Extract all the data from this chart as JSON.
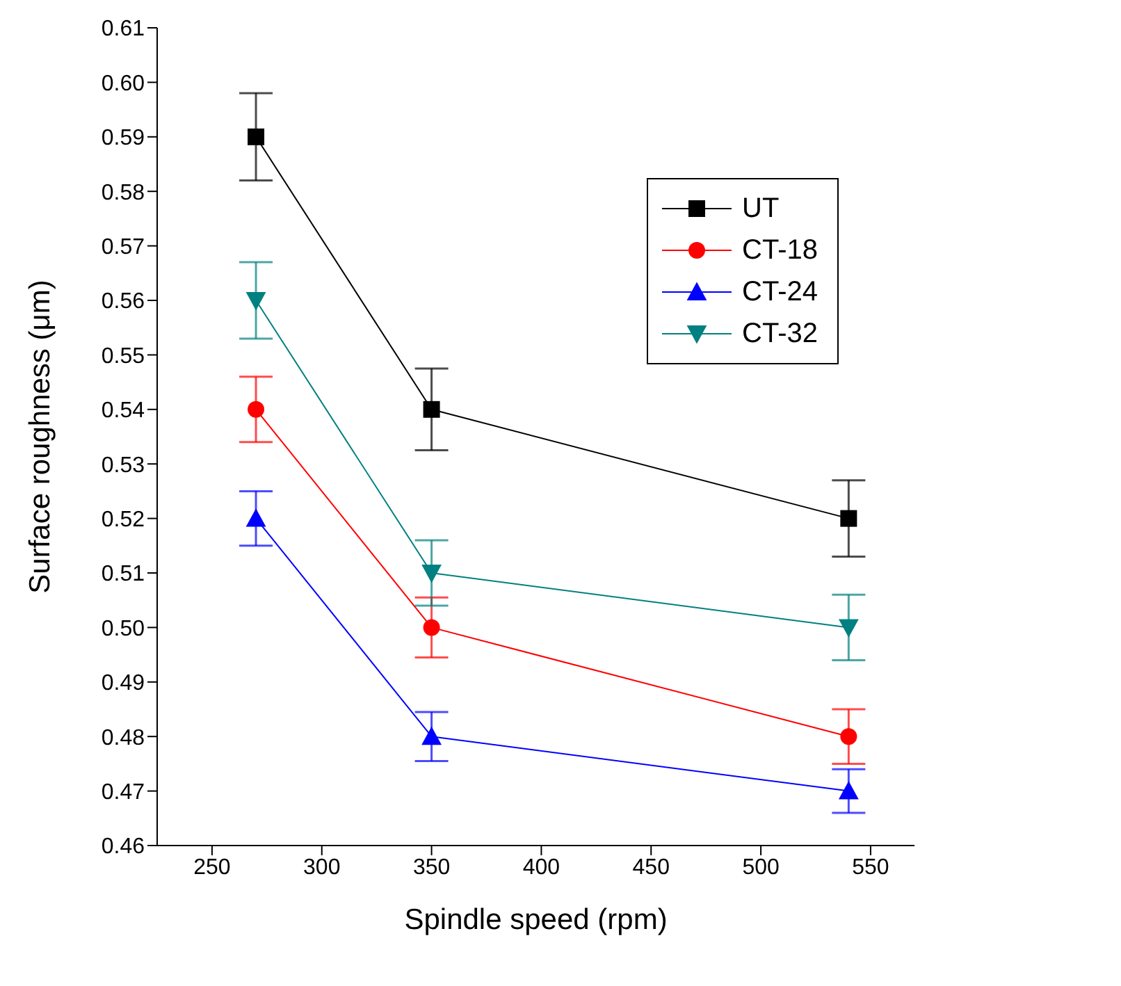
{
  "chart_data": {
    "type": "line",
    "xlabel": "Spindle speed (rpm)",
    "ylabel": "Surface roughness (μm)",
    "x": [
      270,
      350,
      540
    ],
    "xlim": [
      225,
      570
    ],
    "xticks": [
      250,
      300,
      350,
      400,
      450,
      500,
      550
    ],
    "ylim": [
      0.46,
      0.61
    ],
    "yticks": [
      0.46,
      0.47,
      0.48,
      0.49,
      {
        "value": 0.5,
        "label": "0.50"
      },
      0.51,
      0.52,
      0.53,
      0.54,
      0.55,
      0.56,
      0.57,
      0.58,
      0.59,
      {
        "value": 0.6,
        "label": "0.60"
      },
      0.61
    ],
    "grid": false,
    "legend": "top right",
    "series": [
      {
        "name": "UT",
        "color": "#000000",
        "marker": "square",
        "values": [
          0.59,
          0.54,
          0.52
        ],
        "errors": [
          0.008,
          0.0075,
          0.007
        ]
      },
      {
        "name": "CT-18",
        "color": "#ff0000",
        "marker": "circle",
        "values": [
          0.54,
          0.5,
          0.48
        ],
        "errors": [
          0.006,
          0.0055,
          0.005
        ]
      },
      {
        "name": "CT-24",
        "color": "#0000ff",
        "marker": "triangle",
        "values": [
          0.52,
          0.48,
          0.47
        ],
        "errors": [
          0.005,
          0.0045,
          0.004
        ]
      },
      {
        "name": "CT-32",
        "color": "#008080",
        "marker": "triangle-down",
        "values": [
          0.56,
          0.51,
          0.5
        ],
        "errors": [
          0.007,
          0.006,
          0.006
        ]
      }
    ]
  }
}
